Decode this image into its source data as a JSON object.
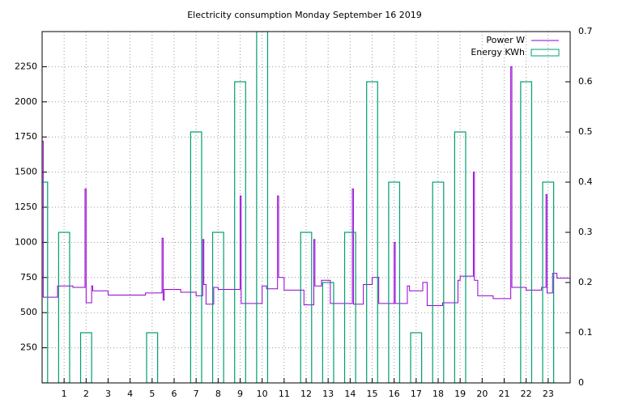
{
  "chart_data": {
    "type": "line",
    "title": "Electricity consumption Monday September 16 2019",
    "xlim": [
      0,
      24
    ],
    "xticks": [
      1,
      2,
      3,
      4,
      5,
      6,
      7,
      8,
      9,
      10,
      11,
      12,
      13,
      14,
      15,
      16,
      17,
      18,
      19,
      20,
      21,
      22,
      23
    ],
    "ylim": [
      0,
      2500
    ],
    "yticks": [
      250,
      500,
      750,
      1000,
      1250,
      1500,
      1750,
      2000,
      2250
    ],
    "y2lim": [
      0,
      0.7
    ],
    "y2ticks": [
      0,
      0.1,
      0.2,
      0.3,
      0.4,
      0.5,
      0.6,
      0.7
    ],
    "grid": true,
    "legend": "top-right",
    "step": "post",
    "series": [
      {
        "name": "Power W",
        "color": "#9400d3",
        "x": [
          0,
          0.05,
          0.7,
          1.4,
          1.95,
          2.0,
          2.25,
          2.3,
          3.0,
          4.7,
          5.45,
          5.5,
          5.55,
          6.3,
          7.0,
          7.3,
          7.35,
          7.45,
          7.8,
          8.0,
          9.0,
          9.05,
          10.0,
          10.2,
          10.7,
          10.75,
          11.0,
          11.9,
          12.35,
          12.4,
          12.7,
          13.1,
          14.1,
          14.15,
          14.6,
          15.0,
          15.3,
          16.0,
          16.05,
          16.6,
          16.7,
          17.3,
          17.5,
          18.2,
          18.9,
          19.0,
          19.6,
          19.65,
          19.8,
          20.5,
          21.3,
          21.35,
          22.0,
          22.7,
          22.9,
          22.95,
          23.2,
          23.4,
          24
        ],
        "values": [
          1720,
          610,
          690,
          680,
          1380,
          570,
          690,
          655,
          625,
          640,
          1030,
          590,
          665,
          645,
          620,
          1020,
          700,
          560,
          680,
          665,
          1330,
          565,
          690,
          670,
          1330,
          750,
          660,
          555,
          1020,
          690,
          730,
          565,
          1380,
          560,
          700,
          750,
          565,
          1000,
          565,
          690,
          655,
          715,
          550,
          570,
          730,
          760,
          1500,
          730,
          620,
          600,
          2250,
          680,
          660,
          680,
          1340,
          640,
          780,
          745,
          745
        ]
      },
      {
        "name": "Energy KWh",
        "color": "#009e73",
        "axis": "y2",
        "kind": "boxes",
        "x": [
          0,
          1,
          2,
          3,
          4,
          5,
          6,
          7,
          8,
          9,
          10,
          11,
          12,
          13,
          14,
          15,
          16,
          17,
          18,
          19,
          20,
          21,
          22,
          23
        ],
        "values": [
          0.4,
          0.3,
          0.1,
          0,
          0,
          0.1,
          0,
          0.5,
          0.3,
          0.6,
          0.7,
          0,
          0.3,
          0.2,
          0.3,
          0.6,
          0.4,
          0.1,
          0.4,
          0.5,
          0,
          0,
          0.6,
          0.4
        ]
      }
    ]
  }
}
